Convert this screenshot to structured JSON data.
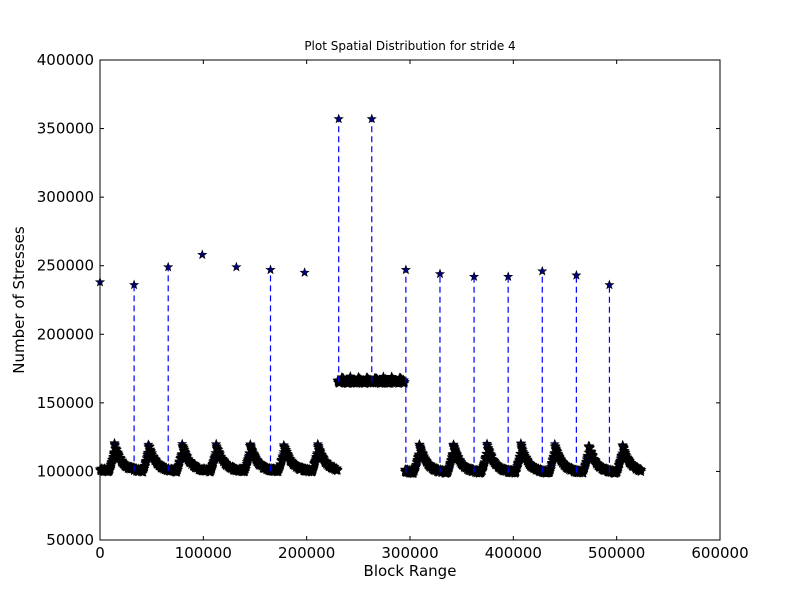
{
  "chart_data": {
    "type": "line",
    "title": "Plot Spatial Distribution for stride 4",
    "xlabel": "Block Range",
    "ylabel": "Number of Stresses",
    "xlim": [
      0,
      600000
    ],
    "ylim": [
      50000,
      400000
    ],
    "xticks": [
      0,
      100000,
      200000,
      300000,
      400000,
      500000,
      600000
    ],
    "yticks": [
      50000,
      100000,
      150000,
      200000,
      250000,
      300000,
      350000,
      400000
    ],
    "grid": false,
    "legend": "none",
    "series": [
      {
        "line_style": "dashed",
        "marker": "star",
        "line_color": "#0000ff",
        "marker_color": "#000080",
        "segments": [
          {
            "x_start": 0,
            "x_end": 230000,
            "baseline": 100000,
            "peak": 122000,
            "period": 32768,
            "phase_peak": 14000,
            "samples_per_period": 180
          },
          {
            "x_start": 230000,
            "x_end": 295000,
            "baseline": 165000,
            "peak": 169000,
            "period": 8000,
            "phase_peak": 2000,
            "samples_per_period": 60
          },
          {
            "x_start": 295000,
            "x_end": 524000,
            "baseline": 99000,
            "peak": 122000,
            "period": 32768,
            "phase_peak": 14000,
            "samples_per_period": 180
          }
        ],
        "spikes": [
          {
            "x": 0,
            "y": 238000,
            "connected": false
          },
          {
            "x": 33000,
            "y": 236000,
            "connected": true
          },
          {
            "x": 66000,
            "y": 249000,
            "connected": true
          },
          {
            "x": 99000,
            "y": 258000,
            "connected": false
          },
          {
            "x": 132000,
            "y": 249000,
            "connected": false
          },
          {
            "x": 165000,
            "y": 247000,
            "connected": true
          },
          {
            "x": 198000,
            "y": 245000,
            "connected": false
          },
          {
            "x": 231000,
            "y": 357000,
            "connected": true
          },
          {
            "x": 263000,
            "y": 357000,
            "connected": true
          },
          {
            "x": 296000,
            "y": 247000,
            "connected": true
          },
          {
            "x": 329000,
            "y": 244000,
            "connected": true
          },
          {
            "x": 362000,
            "y": 242000,
            "connected": true
          },
          {
            "x": 395000,
            "y": 242000,
            "connected": true
          },
          {
            "x": 428000,
            "y": 246000,
            "connected": true
          },
          {
            "x": 461000,
            "y": 243000,
            "connected": true
          },
          {
            "x": 493000,
            "y": 236000,
            "connected": true
          }
        ]
      }
    ]
  }
}
